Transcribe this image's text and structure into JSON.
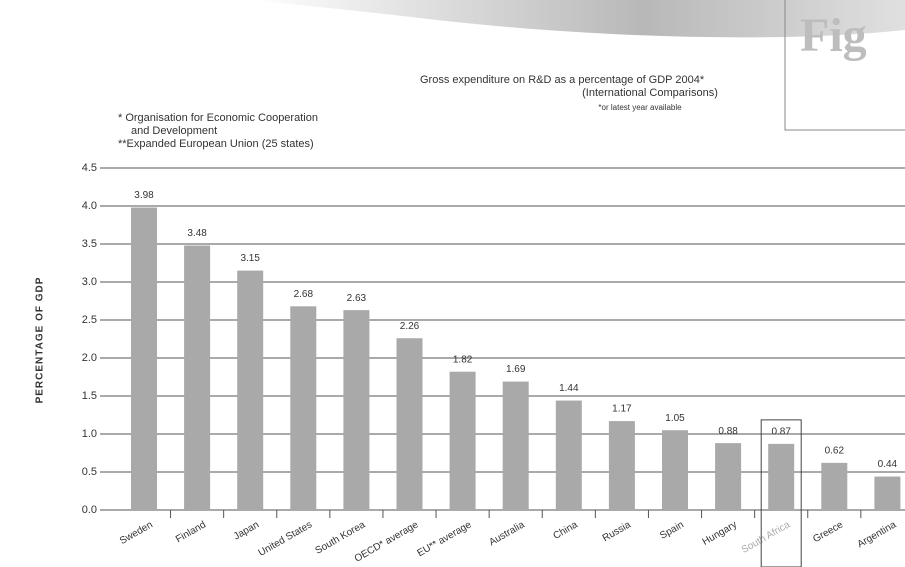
{
  "header": {
    "figure_label": "Fig"
  },
  "chart_data": {
    "type": "bar",
    "title": [
      "Gross expenditure on R&D as a percentage of GDP 2004*",
      "(International Comparisons)"
    ],
    "subtitle": "*or latest year available",
    "notes": [
      "* Organisation for Economic Cooperation",
      "and Development",
      "**Expanded European Union (25 states)"
    ],
    "y_label": "PERCENTAGE OF GDP",
    "categories": [
      "Sweden",
      "Finland",
      "Japan",
      "United States",
      "South Korea",
      "OECD* average",
      "EU** average",
      "Australia",
      "China",
      "Russia",
      "Spain",
      "Hungary",
      "South Africa",
      "Greece",
      "Argentina"
    ],
    "values": [
      3.98,
      3.48,
      3.15,
      2.68,
      2.63,
      2.26,
      1.82,
      1.69,
      1.44,
      1.17,
      1.05,
      0.88,
      0.87,
      0.62,
      0.44
    ],
    "color": "#a9a9a9",
    "highlight_index": 12,
    "ylim": [
      0,
      4.5
    ],
    "yticks": [
      {
        "value": 0,
        "label": "0.0"
      },
      0.5,
      {
        "value": 1,
        "label": "1.0"
      },
      1.5,
      {
        "value": 2,
        "label": "2.0"
      },
      2.5,
      {
        "value": 3,
        "label": "3.0"
      },
      3.5,
      {
        "value": 4,
        "label": "4.0"
      },
      4.5
    ],
    "grid": true
  }
}
